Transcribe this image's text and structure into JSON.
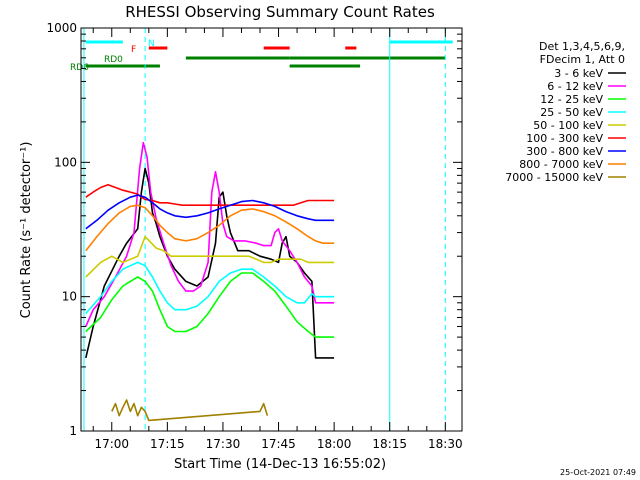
{
  "chart_data": {
    "type": "line",
    "title": "RHESSI Observing Summary Count Rates",
    "xlabel": "Start Time (14-Dec-13 16:55:02)",
    "ylabel": "Count Rate (s⁻¹ detector⁻¹)",
    "ylog": true,
    "ylim": [
      1,
      1000
    ],
    "xlim_min": [
      -2.5,
      33.3
    ],
    "x_ticks": [
      {
        "t": 5,
        "label": "17:00"
      },
      {
        "t": 20,
        "label": "17:15"
      },
      {
        "t": 35,
        "label": "17:30"
      },
      {
        "t": 50,
        "label": "17:45"
      },
      {
        "t": 65,
        "label": "18:00"
      },
      {
        "t": 80,
        "label": "18:15"
      },
      {
        "t": 95,
        "label": "18:30"
      }
    ],
    "y_ticks": [
      {
        "v": 1,
        "label": "1"
      },
      {
        "v": 10,
        "label": "10"
      },
      {
        "v": 100,
        "label": "100"
      },
      {
        "v": 1000,
        "label": "1000"
      }
    ],
    "legend_header": [
      "Det 1,3,4,5,6,9,",
      "FDecim 1, Att 0"
    ],
    "series": [
      {
        "name": "3 - 6 keV",
        "color": "#000000",
        "points": [
          [
            -2,
            3.5
          ],
          [
            0,
            6
          ],
          [
            3,
            12
          ],
          [
            7,
            20
          ],
          [
            9,
            25
          ],
          [
            12,
            32
          ],
          [
            13,
            60
          ],
          [
            14,
            90
          ],
          [
            15,
            70
          ],
          [
            16,
            42
          ],
          [
            17,
            35
          ],
          [
            18,
            28
          ],
          [
            20,
            20
          ],
          [
            22,
            16
          ],
          [
            25,
            13
          ],
          [
            28,
            12
          ],
          [
            31,
            14
          ],
          [
            33,
            25
          ],
          [
            34,
            55
          ],
          [
            35,
            60
          ],
          [
            36,
            40
          ],
          [
            37,
            30
          ],
          [
            39,
            22
          ],
          [
            42,
            22
          ],
          [
            45,
            20
          ],
          [
            48,
            19
          ],
          [
            50,
            18
          ],
          [
            51,
            25
          ],
          [
            52,
            28
          ],
          [
            53,
            20
          ],
          [
            55,
            18
          ],
          [
            57,
            15
          ],
          [
            59,
            13
          ],
          [
            60,
            3.5
          ],
          [
            62,
            3.5
          ],
          [
            65,
            3.5
          ]
        ]
      },
      {
        "name": "6 - 12 keV",
        "color": "#ff00ff",
        "points": [
          [
            -2,
            6
          ],
          [
            0,
            8
          ],
          [
            3,
            10
          ],
          [
            6,
            14
          ],
          [
            9,
            20
          ],
          [
            11,
            30
          ],
          [
            12.5,
            90
          ],
          [
            13.5,
            140
          ],
          [
            14.5,
            110
          ],
          [
            15.5,
            60
          ],
          [
            17,
            38
          ],
          [
            19,
            25
          ],
          [
            21,
            17
          ],
          [
            23,
            13
          ],
          [
            25,
            11
          ],
          [
            27,
            11
          ],
          [
            29,
            12
          ],
          [
            31,
            18
          ],
          [
            32,
            60
          ],
          [
            33,
            85
          ],
          [
            34,
            60
          ],
          [
            35,
            35
          ],
          [
            36,
            28
          ],
          [
            38,
            26
          ],
          [
            41,
            26
          ],
          [
            44,
            25
          ],
          [
            46,
            24
          ],
          [
            48,
            24
          ],
          [
            49,
            30
          ],
          [
            50,
            32
          ],
          [
            51,
            26
          ],
          [
            53,
            22
          ],
          [
            55,
            18
          ],
          [
            57,
            14
          ],
          [
            59,
            12
          ],
          [
            60,
            9
          ],
          [
            63,
            9
          ],
          [
            65,
            9
          ]
        ]
      },
      {
        "name": "12 - 25 keV",
        "color": "#00ff00",
        "points": [
          [
            -2,
            5.5
          ],
          [
            2,
            7
          ],
          [
            5,
            9.5
          ],
          [
            8,
            12
          ],
          [
            10,
            13
          ],
          [
            12,
            14
          ],
          [
            14,
            13
          ],
          [
            16,
            11
          ],
          [
            18,
            8
          ],
          [
            20,
            6
          ],
          [
            22,
            5.5
          ],
          [
            25,
            5.5
          ],
          [
            28,
            6
          ],
          [
            31,
            7.5
          ],
          [
            34,
            10
          ],
          [
            37,
            13
          ],
          [
            40,
            15
          ],
          [
            43,
            15
          ],
          [
            46,
            13
          ],
          [
            49,
            11
          ],
          [
            52,
            8.5
          ],
          [
            55,
            6.5
          ],
          [
            58,
            5.5
          ],
          [
            60,
            5
          ],
          [
            62,
            5
          ],
          [
            65,
            5
          ]
        ]
      },
      {
        "name": "25 - 50 keV",
        "color": "#00ffff",
        "points": [
          [
            -2,
            7.5
          ],
          [
            2,
            10
          ],
          [
            5,
            13
          ],
          [
            8,
            16
          ],
          [
            10,
            17
          ],
          [
            12,
            18
          ],
          [
            14,
            17
          ],
          [
            16,
            14
          ],
          [
            18,
            11
          ],
          [
            20,
            9
          ],
          [
            22,
            8
          ],
          [
            25,
            8
          ],
          [
            28,
            8.5
          ],
          [
            31,
            10
          ],
          [
            34,
            13
          ],
          [
            37,
            15
          ],
          [
            40,
            16
          ],
          [
            43,
            16
          ],
          [
            46,
            14
          ],
          [
            49,
            12
          ],
          [
            52,
            10
          ],
          [
            55,
            9
          ],
          [
            57,
            9
          ],
          [
            59,
            10.5
          ],
          [
            60,
            10
          ],
          [
            62,
            10
          ],
          [
            65,
            10
          ]
        ]
      },
      {
        "name": "50 - 100 keV",
        "color": "#cccc00",
        "points": [
          [
            -2,
            14
          ],
          [
            2,
            18
          ],
          [
            5,
            20
          ],
          [
            8,
            18
          ],
          [
            12,
            20
          ],
          [
            14,
            28
          ],
          [
            17,
            23
          ],
          [
            19,
            22
          ],
          [
            21,
            20
          ],
          [
            23,
            20
          ],
          [
            25,
            20
          ],
          [
            28,
            20
          ],
          [
            30,
            20
          ],
          [
            32,
            20
          ],
          [
            34,
            20
          ],
          [
            36,
            20
          ],
          [
            38,
            20
          ],
          [
            40,
            20
          ],
          [
            42,
            20
          ],
          [
            44,
            19
          ],
          [
            46,
            18
          ],
          [
            48,
            18
          ],
          [
            50,
            19
          ],
          [
            52,
            19
          ],
          [
            54,
            19
          ],
          [
            56,
            19
          ],
          [
            58,
            18
          ],
          [
            60,
            18
          ],
          [
            62,
            18
          ],
          [
            65,
            18
          ]
        ]
      },
      {
        "name": "100 - 300 keV",
        "color": "#ff0000",
        "points": [
          [
            -2,
            55
          ],
          [
            0,
            60
          ],
          [
            2,
            65
          ],
          [
            4,
            68
          ],
          [
            6,
            65
          ],
          [
            8,
            62
          ],
          [
            10,
            60
          ],
          [
            12,
            58
          ],
          [
            13,
            55
          ],
          [
            14,
            53
          ],
          [
            16,
            52
          ],
          [
            18,
            50
          ],
          [
            20,
            50
          ],
          [
            22,
            49
          ],
          [
            24,
            48
          ],
          [
            26,
            48
          ],
          [
            28,
            48
          ],
          [
            30,
            48
          ],
          [
            32,
            48
          ],
          [
            34,
            48
          ],
          [
            36,
            48
          ],
          [
            38,
            48
          ],
          [
            40,
            48
          ],
          [
            42,
            48
          ],
          [
            44,
            48
          ],
          [
            46,
            48
          ],
          [
            48,
            48
          ],
          [
            50,
            48
          ],
          [
            52,
            48
          ],
          [
            54,
            48
          ],
          [
            56,
            50
          ],
          [
            58,
            52
          ],
          [
            60,
            52
          ],
          [
            62,
            52
          ],
          [
            65,
            52
          ]
        ]
      },
      {
        "name": "300 - 800 keV",
        "color": "#0000ff",
        "points": [
          [
            -2,
            32
          ],
          [
            1,
            37
          ],
          [
            4,
            44
          ],
          [
            7,
            50
          ],
          [
            10,
            55
          ],
          [
            12,
            57
          ],
          [
            14,
            55
          ],
          [
            16,
            50
          ],
          [
            18,
            45
          ],
          [
            20,
            42
          ],
          [
            22,
            40
          ],
          [
            25,
            39
          ],
          [
            28,
            40
          ],
          [
            31,
            42
          ],
          [
            34,
            45
          ],
          [
            37,
            48
          ],
          [
            40,
            51
          ],
          [
            43,
            52
          ],
          [
            46,
            50
          ],
          [
            49,
            47
          ],
          [
            52,
            43
          ],
          [
            55,
            40
          ],
          [
            58,
            38
          ],
          [
            60,
            37
          ],
          [
            62,
            37
          ],
          [
            65,
            37
          ]
        ]
      },
      {
        "name": "800 - 7000 keV",
        "color": "#ff8000",
        "points": [
          [
            -2,
            22
          ],
          [
            1,
            28
          ],
          [
            4,
            35
          ],
          [
            7,
            42
          ],
          [
            10,
            47
          ],
          [
            12,
            48
          ],
          [
            14,
            46
          ],
          [
            16,
            40
          ],
          [
            18,
            34
          ],
          [
            20,
            30
          ],
          [
            22,
            27
          ],
          [
            25,
            26
          ],
          [
            28,
            27
          ],
          [
            31,
            30
          ],
          [
            34,
            34
          ],
          [
            37,
            40
          ],
          [
            40,
            44
          ],
          [
            43,
            45
          ],
          [
            46,
            43
          ],
          [
            49,
            40
          ],
          [
            52,
            36
          ],
          [
            55,
            32
          ],
          [
            58,
            28
          ],
          [
            60,
            26
          ],
          [
            62,
            25
          ],
          [
            65,
            25
          ]
        ]
      },
      {
        "name": "7000 - 15000 keV",
        "color": "#a08000",
        "points": [
          [
            5,
            1.4
          ],
          [
            6,
            1.6
          ],
          [
            7,
            1.3
          ],
          [
            8,
            1.5
          ],
          [
            9,
            1.7
          ],
          [
            10,
            1.4
          ],
          [
            11,
            1.6
          ],
          [
            12,
            1.3
          ],
          [
            13,
            1.5
          ],
          [
            14,
            1.4
          ],
          [
            15,
            1.2
          ],
          [
            45,
            1.4
          ],
          [
            46,
            1.6
          ],
          [
            47,
            1.3
          ]
        ]
      }
    ],
    "flags": [
      {
        "name": "N",
        "color": "#00ffff",
        "segments": [
          [
            -2,
            8
          ],
          [
            80,
            97
          ]
        ]
      },
      {
        "name": "F",
        "color": "#ff0000",
        "segments": [
          [
            15,
            20
          ],
          [
            46,
            53
          ],
          [
            68,
            71
          ]
        ]
      },
      {
        "name": "RD0",
        "color": "#008000",
        "segments": [
          [
            25,
            53
          ],
          [
            53,
            95
          ]
        ]
      },
      {
        "name": "RD6",
        "color": "#008000",
        "segments": [
          [
            -2,
            18
          ],
          [
            53,
            72
          ]
        ]
      }
    ],
    "vertical_markers": [
      {
        "t": 14,
        "color": "#00ffff",
        "style": "dashed"
      },
      {
        "t": 80,
        "color": "#00ffff",
        "style": "solid"
      },
      {
        "t": 95,
        "color": "#00ffff",
        "style": "dashed"
      },
      {
        "t": -2.5,
        "color": "#00ffff",
        "style": "solid"
      }
    ],
    "footer_date": "25-Oct-2021 07:49"
  }
}
